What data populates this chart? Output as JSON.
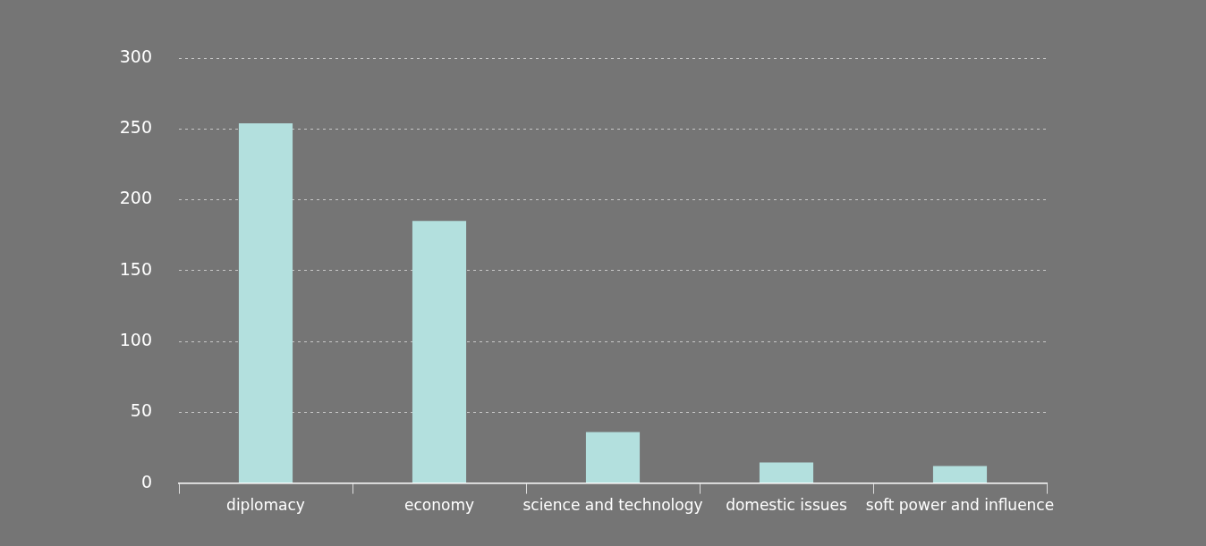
{
  "chart_data": {
    "type": "bar",
    "categories": [
      "diplomacy",
      "economy",
      "science and technology",
      "domestic issues",
      "soft power and influence"
    ],
    "values": [
      254,
      185,
      36,
      14.5,
      12
    ],
    "color": "#b3e0de",
    "ylim": [
      0,
      300
    ],
    "yticks": [
      0,
      50,
      100,
      150,
      200,
      250,
      300
    ],
    "grid": "y",
    "legend": false
  }
}
